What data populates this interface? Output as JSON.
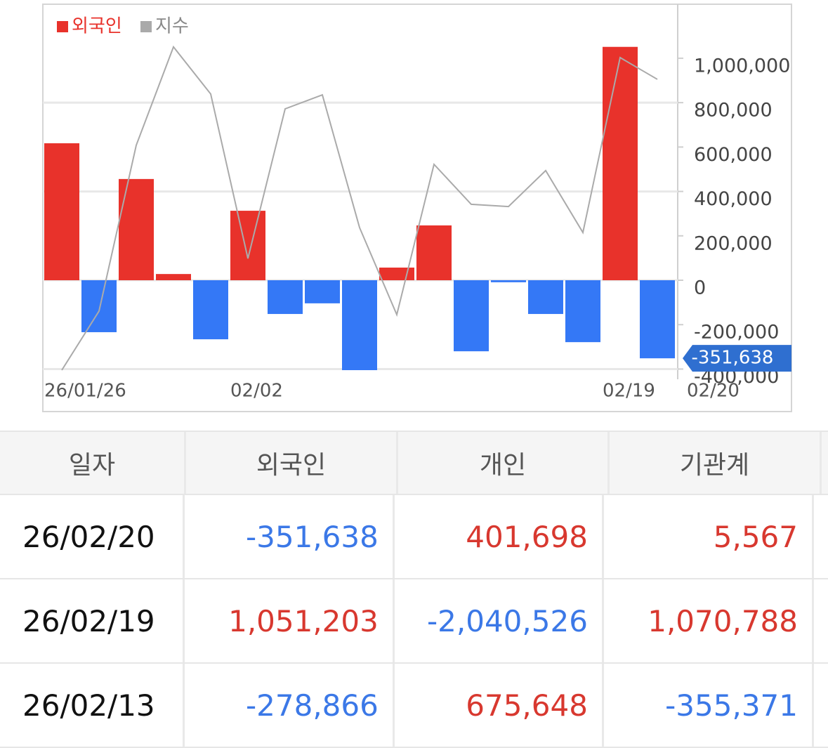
{
  "chart_data": {
    "type": "bar",
    "categories": [
      "26/01/26",
      null,
      null,
      null,
      null,
      "02/02",
      null,
      null,
      null,
      null,
      null,
      null,
      null,
      null,
      null,
      "02/19",
      "02/20"
    ],
    "series": [
      {
        "name": "외국인",
        "color": "#e8322b",
        "negative_color": "#3478f6",
        "values": [
          617000,
          -234000,
          456000,
          28000,
          -266000,
          313000,
          -152000,
          -104000,
          -405000,
          57000,
          247000,
          -320000,
          -9000,
          -152000,
          -278866,
          1051203,
          -351638
        ],
        "value_labels": [
          null,
          null,
          null,
          null,
          null,
          null,
          null,
          null,
          null,
          null,
          null,
          null,
          null,
          null,
          null,
          null,
          "-351,638"
        ]
      },
      {
        "name": "지수",
        "type": "line",
        "color": "#aaaaaa",
        "values": [
          -405000,
          -139000,
          608000,
          1051000,
          839000,
          98000,
          772000,
          835000,
          237000,
          -155000,
          522000,
          342000,
          332000,
          494000,
          215000,
          1003000,
          905000
        ]
      }
    ],
    "ylim": [
      -410000,
      1237000
    ],
    "yticks": [
      {
        "value": -400000,
        "label": "-400,000"
      },
      {
        "value": -200000,
        "label": "-200,000"
      },
      0,
      {
        "value": 200000,
        "label": "200,000"
      },
      {
        "value": 400000,
        "label": "400,000"
      },
      {
        "value": 600000,
        "label": "600,000"
      },
      {
        "value": 800000,
        "label": "800,000"
      },
      {
        "value": 1000000,
        "label": "1,000,000"
      }
    ],
    "grid": true,
    "legend": "top-left"
  },
  "table": {
    "header": [
      "일자",
      "외국인",
      "개인",
      "기관계"
    ],
    "rows": [
      [
        "26/02/20",
        "-351,638",
        "401,698",
        "5,567"
      ],
      [
        "26/02/19",
        "1,051,203",
        "-2,040,526",
        "1,070,788"
      ],
      [
        "26/02/13",
        "-278,866",
        "675,648",
        "-355,371"
      ]
    ]
  }
}
